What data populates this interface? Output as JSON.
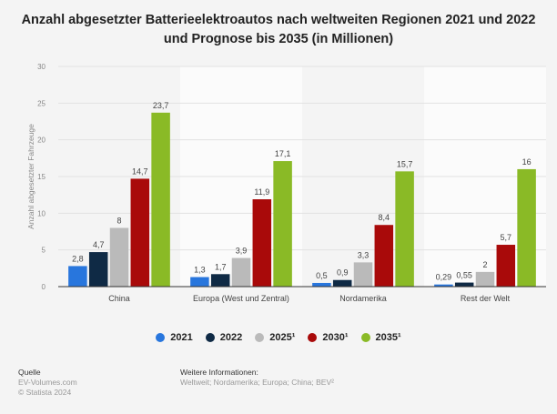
{
  "chart_data": {
    "type": "bar",
    "title": "Anzahl abgesetzter Batterieelektroautos nach weltweiten Regionen 2021 und 2022 und Prognose bis 2035 (in Millionen)",
    "title_lines": [
      "Anzahl abgesetzter Batterieelektroautos nach weltweiten Regionen 2021 und 2022",
      "und Prognose bis 2035 (in Millionen)"
    ],
    "ylabel": "Anzahl abgesetzter Fahrzeuge",
    "xlabel": "",
    "ylim": [
      0,
      30
    ],
    "yticks": [
      "0",
      "5",
      "10",
      "15",
      "20",
      "25",
      "30"
    ],
    "grid": true,
    "legend_position": "bottom",
    "categories": [
      "China",
      "Europa (West und Zentral)",
      "Nordamerika",
      "Rest der Welt"
    ],
    "series": [
      {
        "name": "2021",
        "color": "#2876dd",
        "values": [
          2.8,
          1.3,
          0.5,
          0.29
        ],
        "labels": [
          "2,8",
          "1,3",
          "0,5",
          "0,29"
        ]
      },
      {
        "name": "2022",
        "color": "#0f2a45",
        "values": [
          4.7,
          1.7,
          0.9,
          0.55
        ],
        "labels": [
          "4,7",
          "1,7",
          "0,9",
          "0,55"
        ]
      },
      {
        "name": "2025¹",
        "color": "#bababa",
        "values": [
          8,
          3.9,
          3.3,
          2
        ],
        "labels": [
          "8",
          "3,9",
          "3,3",
          "2"
        ]
      },
      {
        "name": "2030¹",
        "color": "#a90a0a",
        "values": [
          14.7,
          11.9,
          8.4,
          5.7
        ],
        "labels": [
          "14,7",
          "11,9",
          "8,4",
          "5,7"
        ]
      },
      {
        "name": "2035¹",
        "color": "#8aba26",
        "values": [
          23.7,
          17.1,
          15.7,
          16
        ],
        "labels": [
          "23,7",
          "17,1",
          "15,7",
          "16"
        ]
      }
    ]
  },
  "footer": {
    "source_heading": "Quelle",
    "source": "EV-Volumes.com",
    "copyright": "© Statista 2024",
    "info_heading": "Weitere Informationen:",
    "info": "Weltweit; Nordamerika; Europa; China; BEV²"
  }
}
